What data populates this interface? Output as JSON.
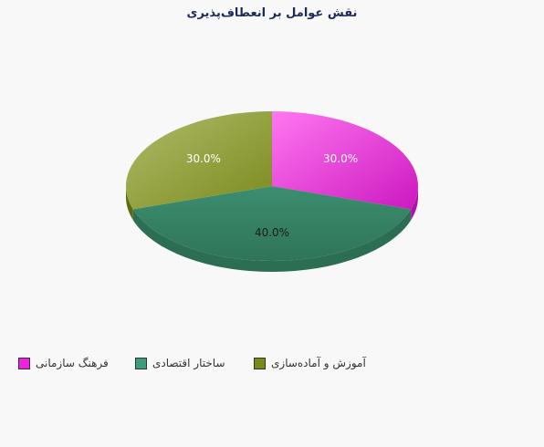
{
  "chart_data": {
    "type": "pie",
    "title": "نقش عوامل بر انعطاف‌پذیری",
    "categories": [
      "فرهنگ سازمانی",
      "ساختار اقتصادی",
      "آموزش و آماده‌سازی"
    ],
    "values": [
      30.0,
      40.0,
      30.0
    ],
    "labels": [
      "30.0%",
      "40.0%",
      "30.0%"
    ],
    "colors": [
      "#ee22dd",
      "#3c9c7c",
      "#7a8a18"
    ],
    "legend_position": "bottom",
    "three_d": true
  }
}
